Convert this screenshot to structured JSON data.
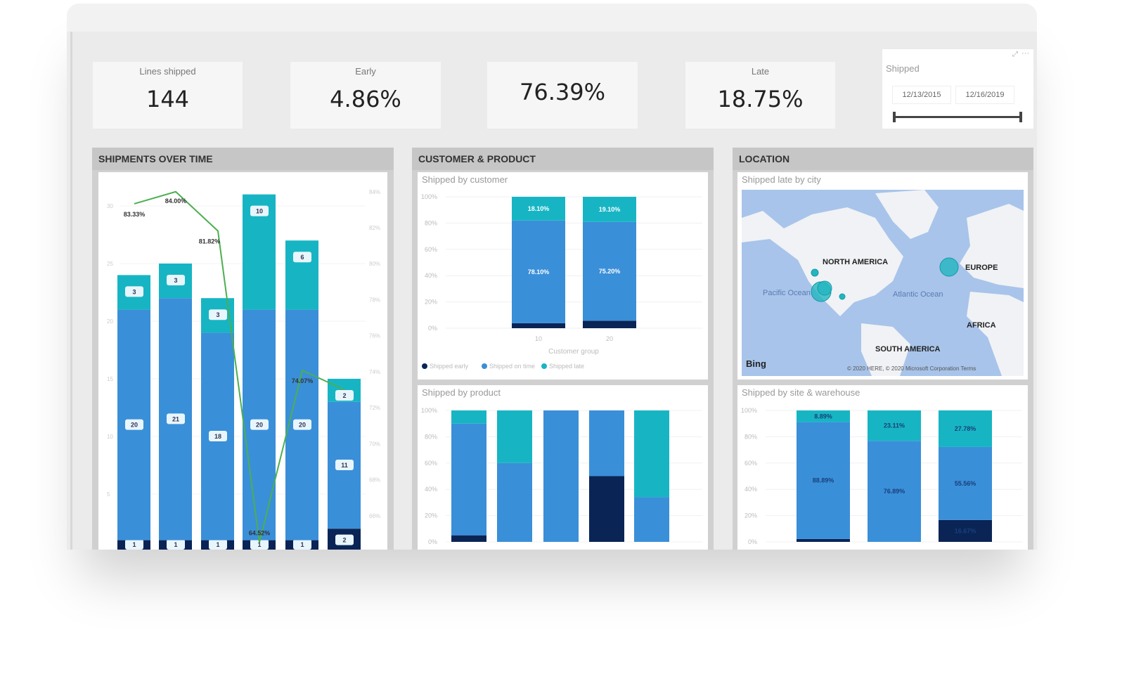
{
  "kpis": [
    {
      "label": "Lines shipped",
      "value": "144"
    },
    {
      "label": "Early",
      "value": "4.86%"
    },
    {
      "label": "",
      "value": "76.39%"
    },
    {
      "label": "Late",
      "value": "18.75%"
    }
  ],
  "slicer": {
    "label": "Shipped",
    "start": "12/13/2015",
    "end": "12/16/2019",
    "icons": [
      "focus-mode-icon",
      "more-options-icon"
    ]
  },
  "panels": {
    "time": "SHIPMENTS OVER TIME",
    "customer": "CUSTOMER & PRODUCT",
    "location": "LOCATION"
  },
  "colors": {
    "early": "#0a2456",
    "on_time": "#3a8fd9",
    "late": "#17b5c4",
    "line": "#4caf50"
  },
  "map": {
    "title": "Shipped late by city",
    "labels": [
      "NORTH AMERICA",
      "EUROPE",
      "AFRICA",
      "SOUTH AMERICA"
    ],
    "oceans": [
      "Pacific Ocean",
      "Atlantic Ocean"
    ],
    "logo": "Bing",
    "copyright": "© 2020 HERE, © 2020 Microsoft Corporation  Terms"
  },
  "chart_data": [
    {
      "type": "bar",
      "name": "shipments-over-time",
      "stacked": true,
      "yticks": [
        "5",
        "10",
        "15",
        "20",
        "25",
        "30"
      ],
      "y2ticks": [
        "66%",
        "68%",
        "70%",
        "72%",
        "74%",
        "76%",
        "78%",
        "80%",
        "82%",
        "84%"
      ],
      "series": [
        {
          "key": "early",
          "values": [
            1,
            1,
            1,
            1,
            1,
            2
          ]
        },
        {
          "key": "on_time",
          "values": [
            20,
            21,
            18,
            20,
            20,
            11
          ]
        },
        {
          "key": "late",
          "values": [
            3,
            3,
            3,
            10,
            6,
            2
          ]
        }
      ],
      "line": {
        "values": [
          83.33,
          84.0,
          81.82,
          64.52,
          74.07,
          73.0
        ],
        "labels": [
          "83.33%",
          "84.00%",
          "81.82%",
          "64.52%",
          "74.07%",
          ""
        ]
      },
      "ylim": [
        0,
        32
      ],
      "y2lim": [
        64,
        84.5
      ]
    },
    {
      "type": "bar",
      "name": "shipped-by-customer",
      "title": "Shipped by customer",
      "stacked": true,
      "percent": true,
      "categories": [
        "10",
        "20"
      ],
      "xlabel": "Customer group",
      "yticks": [
        "0%",
        "20%",
        "40%",
        "60%",
        "80%",
        "100%"
      ],
      "series": [
        {
          "key": "early",
          "name": "Shipped early",
          "values": [
            3.8,
            5.7
          ]
        },
        {
          "key": "on_time",
          "name": "Shipped on time",
          "values": [
            78.1,
            75.2
          ],
          "labels": [
            "78.10%",
            "75.20%"
          ]
        },
        {
          "key": "late",
          "name": "Shipped late",
          "values": [
            18.1,
            19.1
          ],
          "labels": [
            "18.10%",
            "19.10%"
          ]
        }
      ]
    },
    {
      "type": "bar",
      "name": "shipped-by-product",
      "title": "Shipped by product",
      "stacked": true,
      "percent": true,
      "yticks": [
        "0%",
        "20%",
        "40%",
        "60%",
        "80%",
        "100%"
      ],
      "series": [
        {
          "key": "early",
          "values": [
            5,
            0,
            0,
            50,
            0
          ]
        },
        {
          "key": "on_time",
          "values": [
            85,
            60,
            100,
            50,
            34
          ]
        },
        {
          "key": "late",
          "values": [
            10,
            40,
            0,
            0,
            66
          ]
        }
      ]
    },
    {
      "type": "bar",
      "name": "shipped-by-site-warehouse",
      "title": "Shipped by site & warehouse",
      "stacked": true,
      "percent": true,
      "yticks": [
        "0%",
        "20%",
        "40%",
        "60%",
        "80%",
        "100%"
      ],
      "series": [
        {
          "key": "early",
          "values": [
            2.22,
            0,
            16.67
          ],
          "labels": [
            "",
            "",
            "16.67%"
          ]
        },
        {
          "key": "on_time",
          "values": [
            88.89,
            76.89,
            55.56
          ],
          "labels": [
            "88.89%",
            "76.89%",
            "55.56%"
          ]
        },
        {
          "key": "late",
          "values": [
            8.89,
            23.11,
            27.78
          ],
          "labels": [
            "8.89%",
            "23.11%",
            "27.78%"
          ]
        }
      ]
    }
  ]
}
